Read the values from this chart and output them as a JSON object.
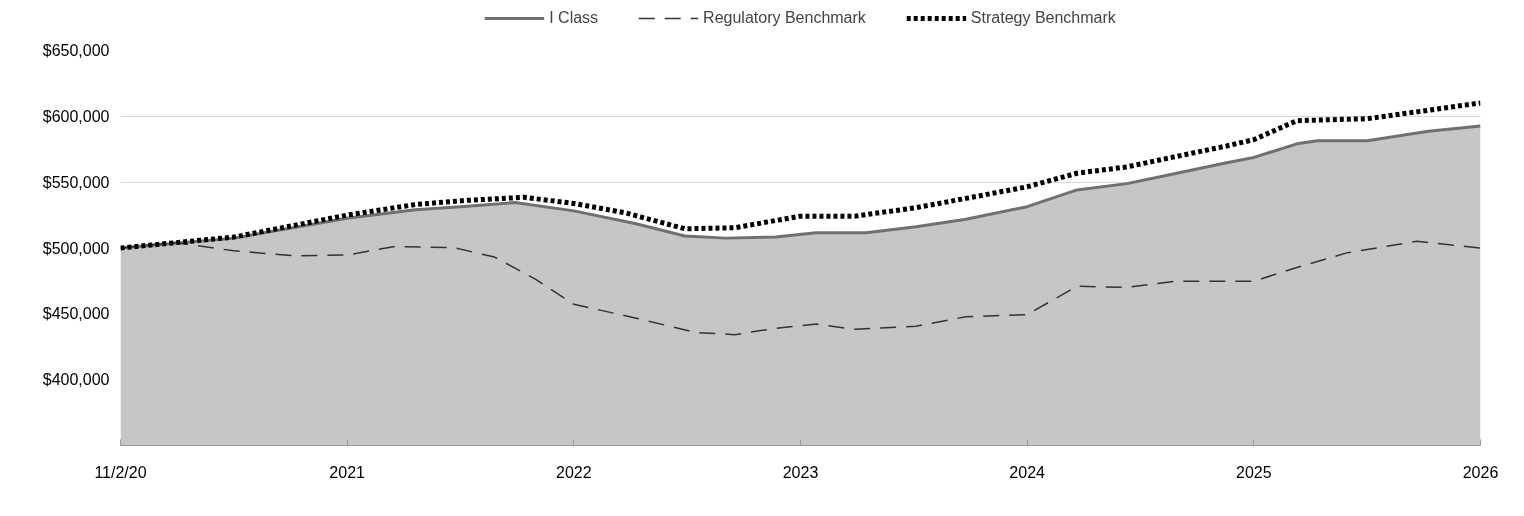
{
  "chart_data": {
    "type": "line",
    "legend": "top",
    "grid": "y",
    "xlim": [
      2020,
      2026
    ],
    "xticks": [
      {
        "value": 2020,
        "label": "11/2/20"
      },
      2021,
      2022,
      2023,
      2024,
      2025,
      2026
    ],
    "ylim": [
      350000,
      650000
    ],
    "yticks": [
      {
        "value": 400000,
        "label": "$400,000"
      },
      {
        "value": 450000,
        "label": "$450,000"
      },
      {
        "value": 500000,
        "label": "$500,000"
      },
      {
        "value": 550000,
        "label": "$550,000"
      },
      {
        "value": 600000,
        "label": "$600,000"
      },
      {
        "value": 650000,
        "label": "$650,000"
      }
    ],
    "series": [
      {
        "name": "I Class",
        "type": "area",
        "color": "#707070",
        "line_style": "solid",
        "x": [
          2020,
          2020.5,
          2021,
          2021.3,
          2021.5,
          2021.74,
          2022,
          2022.27,
          2022.49,
          2022.67,
          2022.89,
          2023.07,
          2023.29,
          2023.51,
          2023.73,
          2024,
          2024.22,
          2024.44,
          2024.66,
          2024.88,
          2025,
          2025.19,
          2025.28,
          2025.5,
          2025.77,
          2026
        ],
        "values": [
          500000,
          507500,
          522600,
          529000,
          531400,
          534500,
          528200,
          518600,
          509100,
          507500,
          508300,
          511500,
          511500,
          516200,
          521800,
          531400,
          544100,
          548900,
          556800,
          564800,
          568800,
          579100,
          581500,
          581500,
          588700,
          592700
        ]
      },
      {
        "name": "Regulatory Benchmark",
        "color": "#333333",
        "line_style": "dashed",
        "x": [
          2020,
          2020.23,
          2020.5,
          2020.77,
          2021,
          2021.21,
          2021.47,
          2021.65,
          2021.83,
          2022,
          2022.27,
          2022.54,
          2022.71,
          2022.89,
          2023.07,
          2023.24,
          2023.51,
          2023.73,
          2024,
          2024.22,
          2024.44,
          2024.66,
          2024.88,
          2025,
          2025.19,
          2025.41,
          2025.72,
          2026
        ],
        "values": [
          500000,
          504300,
          497900,
          494000,
          494700,
          501100,
          500300,
          493100,
          476400,
          457300,
          446900,
          435800,
          434200,
          439000,
          442200,
          438200,
          440600,
          447800,
          449400,
          470900,
          470100,
          474800,
          474800,
          474800,
          485200,
          496300,
          505100,
          500000
        ]
      },
      {
        "name": "Strategy Benchmark",
        "color": "#000000",
        "line_style": "dotted",
        "x": [
          2020,
          2020.5,
          2021,
          2021.3,
          2021.52,
          2021.78,
          2022,
          2022.23,
          2022.49,
          2022.71,
          2023,
          2023.24,
          2023.51,
          2023.73,
          2024,
          2024.22,
          2024.44,
          2024.66,
          2024.88,
          2025,
          2025.19,
          2025.5,
          2025.77,
          2026
        ],
        "values": [
          500000,
          508300,
          525000,
          533000,
          536100,
          538500,
          533800,
          526600,
          514600,
          515400,
          524200,
          524200,
          530600,
          537700,
          546500,
          556800,
          561600,
          569600,
          577500,
          582300,
          596700,
          598200,
          604600,
          610200
        ]
      }
    ]
  }
}
